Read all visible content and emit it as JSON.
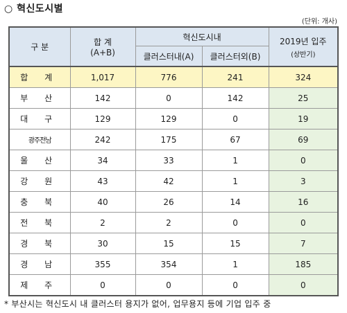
{
  "title": "○ 혁신도시별",
  "unit_note": "(단위: 개사)",
  "header": {
    "category": "구 분",
    "total_line1": "합 계",
    "total_line2": "(A+B)",
    "inner_group": "혁신도시내",
    "inside_cluster": "클러스터내(A)",
    "outside_cluster": "클러스터외(B)",
    "year_line1": "2019년 입주",
    "year_line2": "(상반기)"
  },
  "total_row": {
    "label": "합 계",
    "total": "1,017",
    "inside": "776",
    "outside": "241",
    "y2019": "324"
  },
  "rows": [
    {
      "label": "부 산",
      "total": "142",
      "inside": "0",
      "outside": "142",
      "y2019": "25"
    },
    {
      "label": "대 구",
      "total": "129",
      "inside": "129",
      "outside": "0",
      "y2019": "19"
    },
    {
      "label": "광주전남",
      "total": "242",
      "inside": "175",
      "outside": "67",
      "y2019": "69"
    },
    {
      "label": "울 산",
      "total": "34",
      "inside": "33",
      "outside": "1",
      "y2019": "0"
    },
    {
      "label": "강 원",
      "total": "43",
      "inside": "42",
      "outside": "1",
      "y2019": "3"
    },
    {
      "label": "충 북",
      "total": "40",
      "inside": "26",
      "outside": "14",
      "y2019": "16"
    },
    {
      "label": "전 북",
      "total": "2",
      "inside": "2",
      "outside": "0",
      "y2019": "0"
    },
    {
      "label": "경 북",
      "total": "30",
      "inside": "15",
      "outside": "15",
      "y2019": "7"
    },
    {
      "label": "경 남",
      "total": "355",
      "inside": "354",
      "outside": "1",
      "y2019": "185"
    },
    {
      "label": "제 주",
      "total": "0",
      "inside": "0",
      "outside": "0",
      "y2019": "0"
    }
  ],
  "footnote": "* 부산시는 혁신도시 내 클러스터 용지가 없어, 업무용지 등에 기업 입주 중",
  "colors": {
    "header_bg": "#dce6f1",
    "total_bg": "#fdf6c4",
    "green_bg": "#e8f3e0"
  }
}
